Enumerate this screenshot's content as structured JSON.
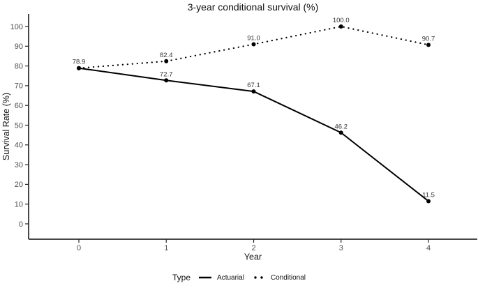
{
  "chart_data": {
    "type": "line",
    "title": "3-year conditional survival (%)",
    "xlabel": "Year",
    "ylabel": "Survival Rate (%)",
    "x": [
      0,
      1,
      2,
      3,
      4
    ],
    "xtick_labels": [
      "0",
      "1",
      "2",
      "3",
      "4"
    ],
    "yticks": [
      0,
      10,
      20,
      30,
      40,
      50,
      60,
      70,
      80,
      90,
      100
    ],
    "xlim": [
      0,
      4
    ],
    "ylim": [
      0,
      100
    ],
    "grid": false,
    "legend_position": "bottom",
    "legend_title": "Type",
    "line_color": "#000000",
    "series": [
      {
        "name": "Actuarial",
        "line_style": "solid",
        "values": [
          78.9,
          72.7,
          67.1,
          46.2,
          11.5
        ],
        "point_labels": [
          "78.9",
          "72.7",
          "67.1",
          "46.2",
          "11.5"
        ]
      },
      {
        "name": "Conditional",
        "line_style": "dotted",
        "values": [
          78.9,
          82.4,
          91.0,
          100.0,
          90.7
        ],
        "point_labels": [
          null,
          "82.4",
          "91.0",
          "100.0",
          "90.7"
        ]
      }
    ]
  }
}
